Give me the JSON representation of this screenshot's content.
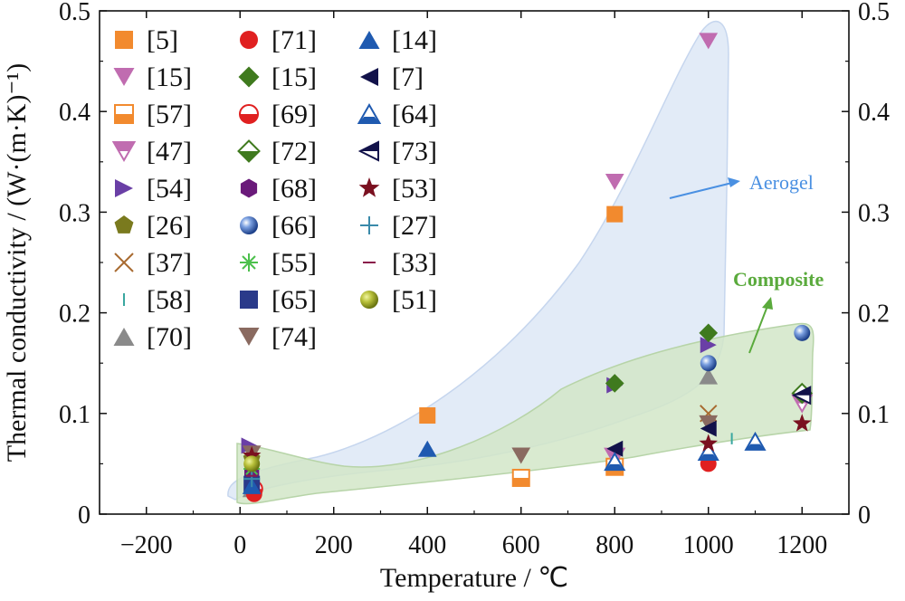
{
  "chart_data": {
    "type": "scatter",
    "xlabel": "Temperature / ℃",
    "ylabel": "Thermal conductivity / (W·(m·K)⁻¹)",
    "xlim": [
      -300,
      1300
    ],
    "ylim": [
      0,
      0.5
    ],
    "x_ticks": [
      "−200",
      "0",
      "200",
      "400",
      "600",
      "800",
      "1000",
      "1200"
    ],
    "y_ticks": [
      "0",
      "0.1",
      "0.2",
      "0.3",
      "0.4",
      "0.5"
    ],
    "y_ticks_right": [
      "0",
      "0.1",
      "0.2",
      "0.3",
      "0.4",
      "0.5"
    ],
    "regions": [
      {
        "name": "Aerogel",
        "color": "#4a90e2",
        "fill": "#dbe6f5"
      },
      {
        "name": "Composite",
        "color": "#5aaa3c",
        "fill": "#d4e8cc"
      }
    ],
    "series": [
      {
        "name": "[5]",
        "marker": "square",
        "color": "#f28a2e",
        "points": [
          [
            400,
            0.098
          ],
          [
            800,
            0.298
          ]
        ]
      },
      {
        "name": "[15]",
        "marker": "tri-down",
        "color": "#c06cb0",
        "points": [
          [
            800,
            0.33
          ],
          [
            1000,
            0.47
          ]
        ]
      },
      {
        "name": "[57]",
        "marker": "square-half",
        "color": "#f28a2e",
        "points": [
          [
            600,
            0.036
          ],
          [
            800,
            0.047
          ]
        ]
      },
      {
        "name": "[47]",
        "marker": "tri-down-half",
        "color": "#c06cb0",
        "points": [
          [
            800,
            0.057
          ],
          [
            1200,
            0.11
          ]
        ]
      },
      {
        "name": "[54]",
        "marker": "tri-right",
        "color": "#6a3fa6",
        "points": [
          [
            20,
            0.068
          ],
          [
            800,
            0.128
          ],
          [
            1000,
            0.168
          ]
        ]
      },
      {
        "name": "[26]",
        "marker": "pentagon",
        "color": "#7a7a1e",
        "points": [
          [
            25,
            0.055
          ]
        ]
      },
      {
        "name": "[37]",
        "marker": "x",
        "color": "#a86a30",
        "points": [
          [
            1000,
            0.1
          ]
        ]
      },
      {
        "name": "[58]",
        "marker": "vbar",
        "color": "#3aa7a0",
        "points": [
          [
            1050,
            0.075
          ]
        ]
      },
      {
        "name": "[70]",
        "marker": "tri-up",
        "color": "#8a8a8a",
        "points": [
          [
            1000,
            0.137
          ],
          [
            25,
            0.025
          ]
        ]
      },
      {
        "name": "[71]",
        "marker": "circle",
        "color": "#e02020",
        "points": [
          [
            30,
            0.02
          ],
          [
            1000,
            0.05
          ]
        ]
      },
      {
        "name": "[15]",
        "marker": "diamond",
        "color": "#3f7a1e",
        "points": [
          [
            800,
            0.13
          ],
          [
            1000,
            0.18
          ]
        ]
      },
      {
        "name": "[69]",
        "marker": "circle-half",
        "color": "#e02020",
        "points": [
          [
            30,
            0.025
          ]
        ]
      },
      {
        "name": "[72]",
        "marker": "diamond-half",
        "color": "#3f7a1e",
        "points": [
          [
            1200,
            0.12
          ]
        ]
      },
      {
        "name": "[68]",
        "marker": "hexagon",
        "color": "#6a1a7a",
        "points": [
          [
            25,
            0.04
          ]
        ]
      },
      {
        "name": "[66]",
        "marker": "sphere",
        "color": "#2a4f9a",
        "points": [
          [
            1000,
            0.15
          ],
          [
            1200,
            0.18
          ]
        ]
      },
      {
        "name": "[55]",
        "marker": "asterisk",
        "color": "#4cc04c",
        "points": [
          [
            25,
            0.045
          ]
        ]
      },
      {
        "name": "[65]",
        "marker": "square",
        "color": "#2a3a8a",
        "points": [
          [
            25,
            0.03
          ]
        ]
      },
      {
        "name": "[74]",
        "marker": "tri-down",
        "color": "#8a6a60",
        "points": [
          [
            600,
            0.058
          ],
          [
            1000,
            0.09
          ],
          [
            25,
            0.06
          ]
        ]
      },
      {
        "name": "[14]",
        "marker": "tri-up",
        "color": "#1f5ab0",
        "points": [
          [
            400,
            0.065
          ],
          [
            25,
            0.028
          ]
        ]
      },
      {
        "name": "[7]",
        "marker": "tri-left",
        "color": "#12124a",
        "points": [
          [
            800,
            0.065
          ],
          [
            1000,
            0.085
          ]
        ]
      },
      {
        "name": "[64]",
        "marker": "tri-up-half",
        "color": "#1f5ab0",
        "points": [
          [
            800,
            0.052
          ],
          [
            1000,
            0.062
          ],
          [
            1100,
            0.072
          ]
        ]
      },
      {
        "name": "[73]",
        "marker": "tri-left-half",
        "color": "#12124a",
        "points": [
          [
            1200,
            0.118
          ]
        ]
      },
      {
        "name": "[53]",
        "marker": "star",
        "color": "#7a1020",
        "points": [
          [
            1000,
            0.07
          ],
          [
            1200,
            0.09
          ],
          [
            25,
            0.058
          ]
        ]
      },
      {
        "name": "[27]",
        "marker": "plus",
        "color": "#3a8aaa",
        "points": [
          [
            25,
            0.035
          ]
        ]
      },
      {
        "name": "[33]",
        "marker": "minus",
        "color": "#8a1a4a",
        "points": [
          [
            25,
            0.038
          ]
        ]
      },
      {
        "name": "[51]",
        "marker": "sphere",
        "color": "#a0b030",
        "points": [
          [
            25,
            0.05
          ]
        ]
      }
    ]
  }
}
